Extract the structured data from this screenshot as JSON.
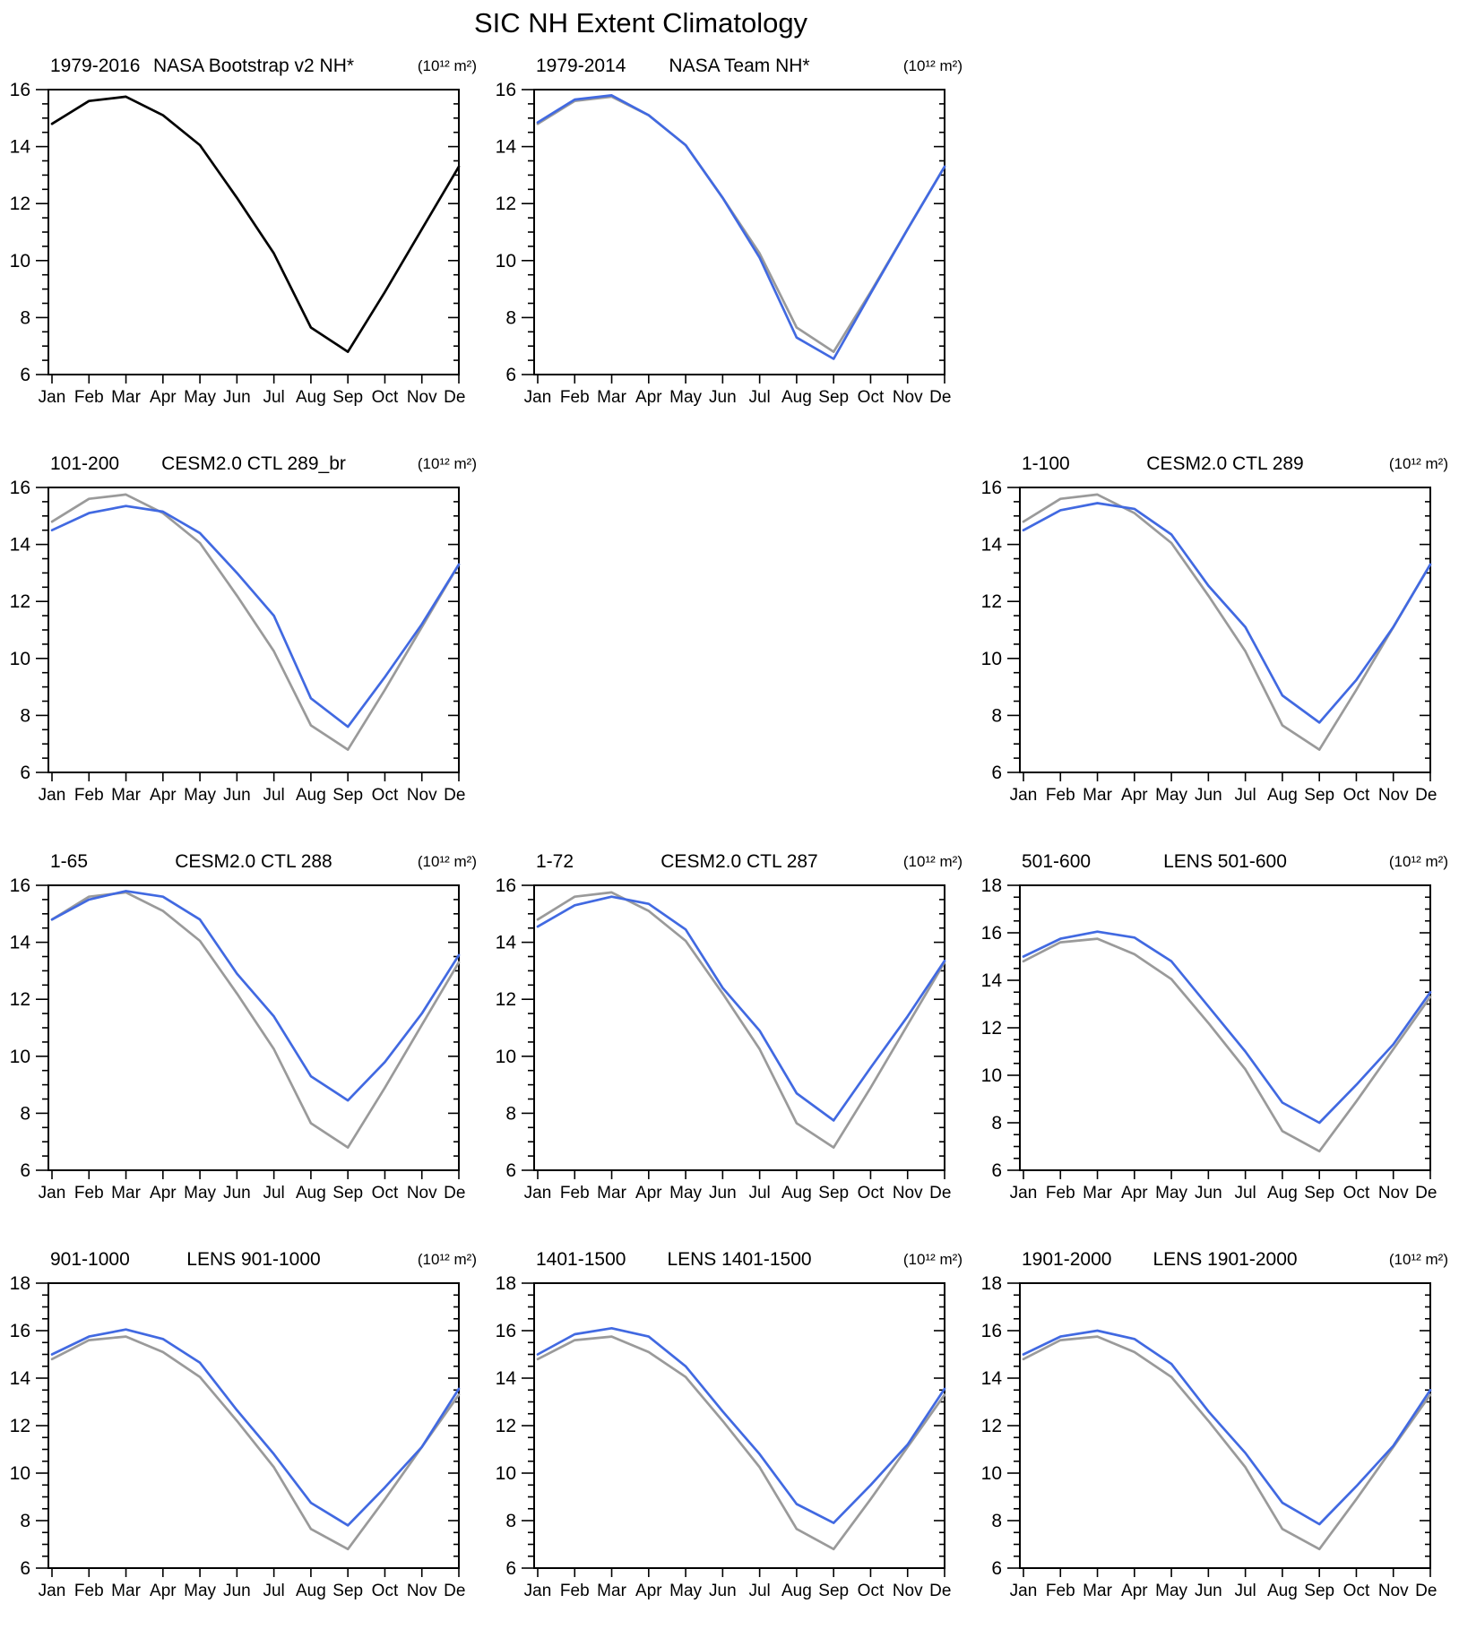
{
  "title": "SIC NH Extent Climatology",
  "unit_label": "(10¹² m²)",
  "months": [
    "Jan",
    "Feb",
    "Mar",
    "Apr",
    "May",
    "Jun",
    "Jul",
    "Aug",
    "Sep",
    "Oct",
    "Nov",
    "Dec"
  ],
  "colors": {
    "observation": "#000000",
    "reference": "#9A9A9A",
    "model": "#4169E1"
  },
  "chart_data": [
    {
      "slot": 0,
      "type": "line",
      "left_title": "1979-2016",
      "center_title": "NASA Bootstrap v2 NH*",
      "unit": "(10¹² m²)",
      "ylim": [
        6,
        16
      ],
      "yticks": [
        6,
        8,
        10,
        12,
        14,
        16
      ],
      "minor_step": 0.5,
      "series": [
        {
          "name": "NASA Bootstrap v2 NH",
          "color_key": "observation",
          "values": [
            14.8,
            15.6,
            15.75,
            15.1,
            14.05,
            12.2,
            10.25,
            7.65,
            6.8,
            8.9,
            11.1,
            13.3
          ]
        }
      ]
    },
    {
      "slot": 1,
      "type": "line",
      "left_title": "1979-2014",
      "center_title": "NASA Team NH*",
      "unit": "(10¹² m²)",
      "ylim": [
        6,
        16
      ],
      "yticks": [
        6,
        8,
        10,
        12,
        14,
        16
      ],
      "minor_step": 0.5,
      "series": [
        {
          "name": "NASA Bootstrap v2 NH (reference)",
          "color_key": "reference",
          "values": [
            14.8,
            15.6,
            15.75,
            15.1,
            14.05,
            12.2,
            10.25,
            7.65,
            6.8,
            8.9,
            11.1,
            13.3
          ]
        },
        {
          "name": "NASA Team NH",
          "color_key": "model",
          "values": [
            14.85,
            15.65,
            15.8,
            15.1,
            14.05,
            12.2,
            10.1,
            7.3,
            6.55,
            8.85,
            11.1,
            13.3
          ]
        }
      ]
    },
    {
      "slot": 3,
      "type": "line",
      "left_title": "101-200",
      "center_title": "CESM2.0 CTL 289_br",
      "unit": "(10¹² m²)",
      "ylim": [
        6,
        16
      ],
      "yticks": [
        6,
        8,
        10,
        12,
        14,
        16
      ],
      "minor_step": 0.5,
      "series": [
        {
          "name": "NASA Bootstrap v2 NH (reference)",
          "color_key": "reference",
          "values": [
            14.8,
            15.6,
            15.75,
            15.1,
            14.05,
            12.2,
            10.25,
            7.65,
            6.8,
            8.9,
            11.1,
            13.3
          ]
        },
        {
          "name": "CESM2.0 CTL 289_br",
          "color_key": "model",
          "values": [
            14.5,
            15.1,
            15.35,
            15.15,
            14.4,
            13.0,
            11.5,
            8.6,
            7.6,
            9.35,
            11.2,
            13.3
          ]
        }
      ]
    },
    {
      "slot": 5,
      "type": "line",
      "left_title": "1-100",
      "center_title": "CESM2.0 CTL 289",
      "unit": "(10¹² m²)",
      "ylim": [
        6,
        16
      ],
      "yticks": [
        6,
        8,
        10,
        12,
        14,
        16
      ],
      "minor_step": 0.5,
      "series": [
        {
          "name": "NASA Bootstrap v2 NH (reference)",
          "color_key": "reference",
          "values": [
            14.8,
            15.6,
            15.75,
            15.1,
            14.05,
            12.2,
            10.25,
            7.65,
            6.8,
            8.9,
            11.1,
            13.3
          ]
        },
        {
          "name": "CESM2.0 CTL 289",
          "color_key": "model",
          "values": [
            14.5,
            15.2,
            15.45,
            15.25,
            14.35,
            12.55,
            11.1,
            8.7,
            7.75,
            9.25,
            11.1,
            13.3
          ]
        }
      ]
    },
    {
      "slot": 6,
      "type": "line",
      "left_title": "1-65",
      "center_title": "CESM2.0 CTL 288",
      "unit": "(10¹² m²)",
      "ylim": [
        6,
        16
      ],
      "yticks": [
        6,
        8,
        10,
        12,
        14,
        16
      ],
      "minor_step": 0.5,
      "series": [
        {
          "name": "NASA Bootstrap v2 NH (reference)",
          "color_key": "reference",
          "values": [
            14.8,
            15.6,
            15.75,
            15.1,
            14.05,
            12.2,
            10.25,
            7.65,
            6.8,
            8.9,
            11.1,
            13.3
          ]
        },
        {
          "name": "CESM2.0 CTL 288",
          "color_key": "model",
          "values": [
            14.8,
            15.5,
            15.8,
            15.6,
            14.8,
            12.9,
            11.4,
            9.3,
            8.45,
            9.8,
            11.5,
            13.55
          ]
        }
      ]
    },
    {
      "slot": 7,
      "type": "line",
      "left_title": "1-72",
      "center_title": "CESM2.0 CTL 287",
      "unit": "(10¹² m²)",
      "ylim": [
        6,
        16
      ],
      "yticks": [
        6,
        8,
        10,
        12,
        14,
        16
      ],
      "minor_step": 0.5,
      "series": [
        {
          "name": "NASA Bootstrap v2 NH (reference)",
          "color_key": "reference",
          "values": [
            14.8,
            15.6,
            15.75,
            15.1,
            14.05,
            12.2,
            10.25,
            7.65,
            6.8,
            8.9,
            11.1,
            13.3
          ]
        },
        {
          "name": "CESM2.0 CTL 287",
          "color_key": "model",
          "values": [
            14.55,
            15.3,
            15.6,
            15.35,
            14.45,
            12.4,
            10.9,
            8.7,
            7.75,
            9.6,
            11.4,
            13.35
          ]
        }
      ]
    },
    {
      "slot": 8,
      "type": "line",
      "left_title": "501-600",
      "center_title": "LENS 501-600",
      "unit": "(10¹² m²)",
      "ylim": [
        6,
        18
      ],
      "yticks": [
        6,
        8,
        10,
        12,
        14,
        16,
        18
      ],
      "minor_step": 0.5,
      "series": [
        {
          "name": "NASA Bootstrap v2 NH (reference)",
          "color_key": "reference",
          "values": [
            14.8,
            15.6,
            15.75,
            15.1,
            14.05,
            12.2,
            10.25,
            7.65,
            6.8,
            8.9,
            11.1,
            13.3
          ]
        },
        {
          "name": "LENS 501-600",
          "color_key": "model",
          "values": [
            15.0,
            15.75,
            16.05,
            15.8,
            14.8,
            12.9,
            11.0,
            8.85,
            8.0,
            9.6,
            11.3,
            13.5
          ]
        }
      ]
    },
    {
      "slot": 9,
      "type": "line",
      "left_title": "901-1000",
      "center_title": "LENS 901-1000",
      "unit": "(10¹² m²)",
      "ylim": [
        6,
        18
      ],
      "yticks": [
        6,
        8,
        10,
        12,
        14,
        16,
        18
      ],
      "minor_step": 0.5,
      "series": [
        {
          "name": "NASA Bootstrap v2 NH (reference)",
          "color_key": "reference",
          "values": [
            14.8,
            15.6,
            15.75,
            15.1,
            14.05,
            12.2,
            10.25,
            7.65,
            6.8,
            8.9,
            11.1,
            13.3
          ]
        },
        {
          "name": "LENS 901-1000",
          "color_key": "model",
          "values": [
            15.0,
            15.75,
            16.05,
            15.65,
            14.65,
            12.65,
            10.8,
            8.75,
            7.8,
            9.4,
            11.1,
            13.55
          ]
        }
      ]
    },
    {
      "slot": 10,
      "type": "line",
      "left_title": "1401-1500",
      "center_title": "LENS 1401-1500",
      "unit": "(10¹² m²)",
      "ylim": [
        6,
        18
      ],
      "yticks": [
        6,
        8,
        10,
        12,
        14,
        16,
        18
      ],
      "minor_step": 0.5,
      "series": [
        {
          "name": "NASA Bootstrap v2 NH (reference)",
          "color_key": "reference",
          "values": [
            14.8,
            15.6,
            15.75,
            15.1,
            14.05,
            12.2,
            10.25,
            7.65,
            6.8,
            8.9,
            11.1,
            13.3
          ]
        },
        {
          "name": "LENS 1401-1500",
          "color_key": "model",
          "values": [
            15.0,
            15.85,
            16.1,
            15.75,
            14.5,
            12.6,
            10.8,
            8.7,
            7.9,
            9.5,
            11.2,
            13.55
          ]
        }
      ]
    },
    {
      "slot": 11,
      "type": "line",
      "left_title": "1901-2000",
      "center_title": "LENS 1901-2000",
      "unit": "(10¹² m²)",
      "ylim": [
        6,
        18
      ],
      "yticks": [
        6,
        8,
        10,
        12,
        14,
        16,
        18
      ],
      "minor_step": 0.5,
      "series": [
        {
          "name": "NASA Bootstrap v2 NH (reference)",
          "color_key": "reference",
          "values": [
            14.8,
            15.6,
            15.75,
            15.1,
            14.05,
            12.2,
            10.25,
            7.65,
            6.8,
            8.9,
            11.1,
            13.3
          ]
        },
        {
          "name": "LENS 1901-2000",
          "color_key": "model",
          "values": [
            15.0,
            15.75,
            16.0,
            15.65,
            14.6,
            12.6,
            10.85,
            8.75,
            7.85,
            9.45,
            11.15,
            13.5
          ]
        }
      ]
    }
  ]
}
